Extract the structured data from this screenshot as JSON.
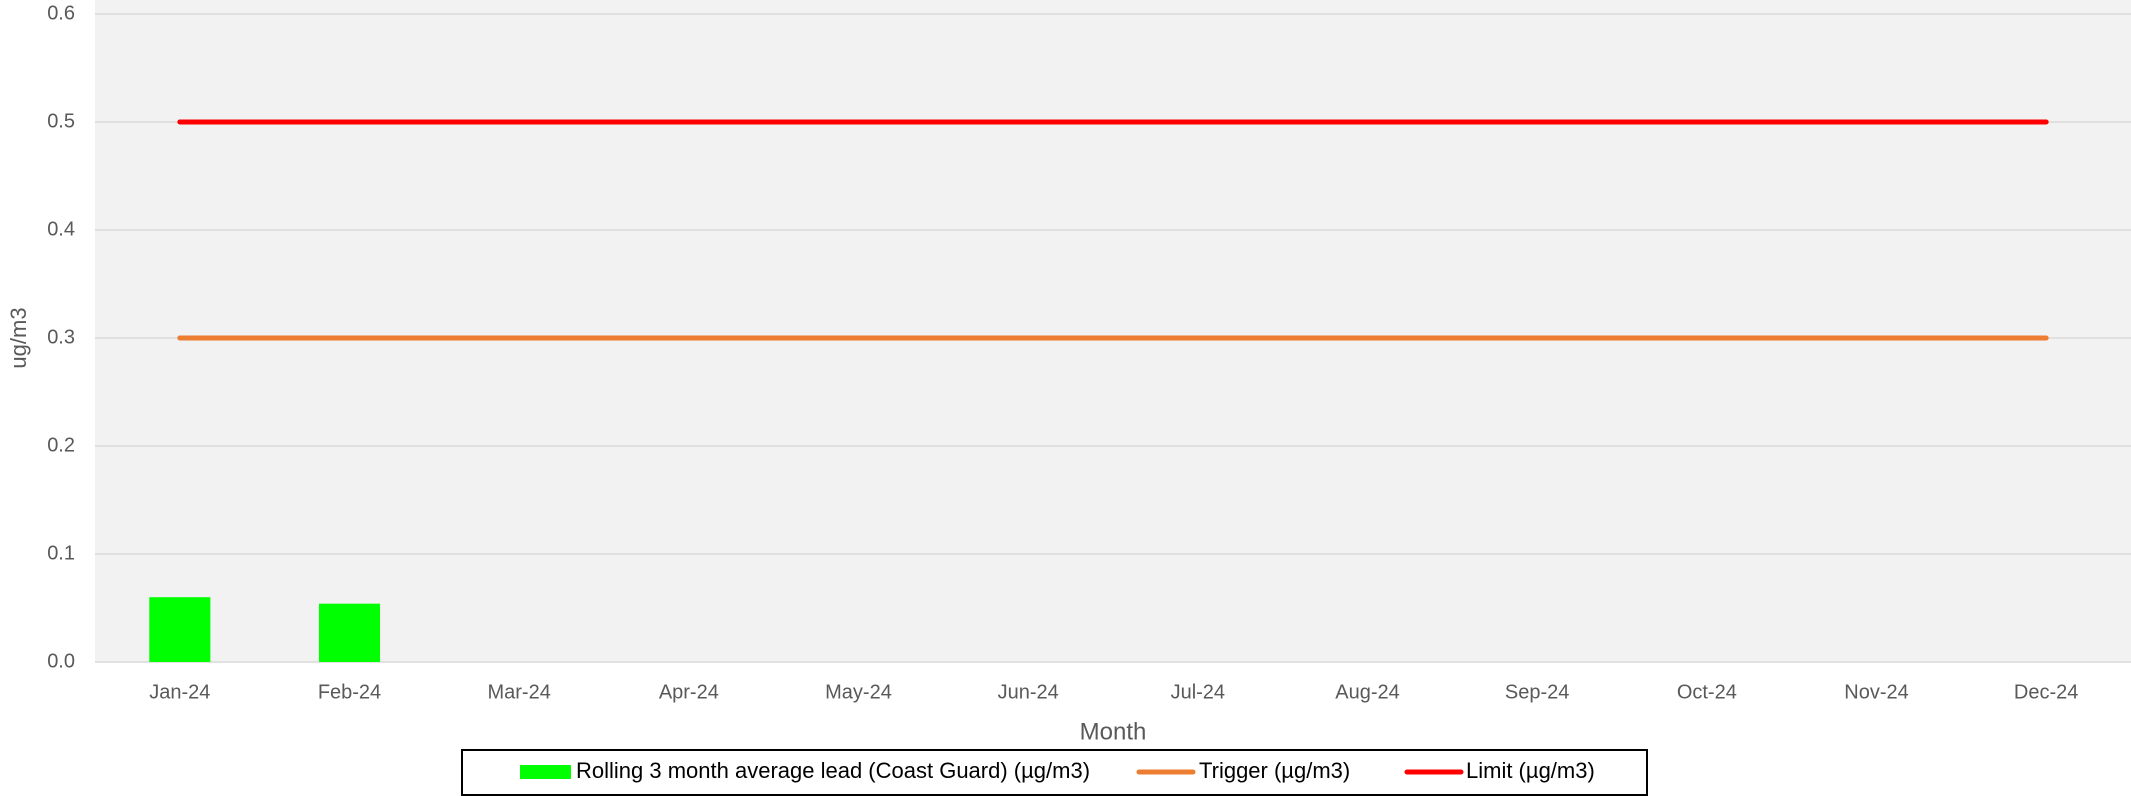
{
  "chart_data": {
    "type": "bar",
    "x_label": "Month",
    "y_label": "ug/m3",
    "categories": [
      "Jan-24",
      "Feb-24",
      "Mar-24",
      "Apr-24",
      "May-24",
      "Jun-24",
      "Jul-24",
      "Aug-24",
      "Sep-24",
      "Oct-24",
      "Nov-24",
      "Dec-24"
    ],
    "series": [
      {
        "name": "Rolling 3 month average lead (Coast Guard) (µg/m3)",
        "type": "bar",
        "color": "#00ff00",
        "values": [
          0.06,
          0.054,
          null,
          null,
          null,
          null,
          null,
          null,
          null,
          null,
          null,
          null
        ]
      },
      {
        "name": "Trigger (µg/m3)",
        "type": "line",
        "color": "#ed7d31",
        "values": [
          0.3,
          0.3,
          0.3,
          0.3,
          0.3,
          0.3,
          0.3,
          0.3,
          0.3,
          0.3,
          0.3,
          0.3
        ]
      },
      {
        "name": "Limit (µg/m3)",
        "type": "line",
        "color": "#ff0000",
        "values": [
          0.5,
          0.5,
          0.5,
          0.5,
          0.5,
          0.5,
          0.5,
          0.5,
          0.5,
          0.5,
          0.5,
          0.5
        ]
      }
    ],
    "ylim": [
      0,
      0.6
    ],
    "yticks": [
      {
        "value": 0,
        "label": "0.0"
      },
      0.1,
      0.2,
      0.3,
      0.4,
      0.5,
      0.6
    ],
    "grid": true,
    "legend": "bottom"
  }
}
